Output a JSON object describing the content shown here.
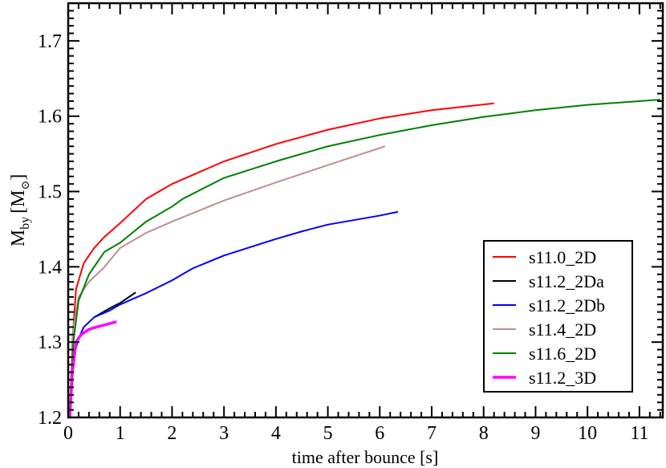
{
  "chart_data": {
    "type": "line",
    "xlabel": "time after bounce [s]",
    "ylabel_main": "M",
    "ylabel_sub": "by",
    "ylabel_unit": "[M",
    "ylabel_unit_sub": "⊙",
    "ylabel_close": "]",
    "xlim": [
      0,
      11.45
    ],
    "ylim": [
      1.2,
      1.75
    ],
    "xticks": [
      0,
      1,
      2,
      3,
      4,
      5,
      6,
      7,
      8,
      9,
      10,
      11
    ],
    "yticks": [
      1.2,
      1.3,
      1.4,
      1.5,
      1.6,
      1.7
    ],
    "ytick_labels": [
      "1.2",
      "1.3",
      "1.4",
      "1.5",
      "1.6",
      "1.7"
    ],
    "grid": false,
    "legend_position": "bottom-right",
    "series": [
      {
        "name": "s11.0_2D",
        "color": "#ff0000",
        "width": 2,
        "points": [
          [
            0.03,
            1.2
          ],
          [
            0.08,
            1.3
          ],
          [
            0.15,
            1.37
          ],
          [
            0.3,
            1.405
          ],
          [
            0.5,
            1.425
          ],
          [
            0.7,
            1.44
          ],
          [
            1,
            1.458
          ],
          [
            1.5,
            1.49
          ],
          [
            2,
            1.51
          ],
          [
            3,
            1.54
          ],
          [
            4,
            1.563
          ],
          [
            5,
            1.582
          ],
          [
            6,
            1.597
          ],
          [
            7,
            1.608
          ],
          [
            8.2,
            1.617
          ]
        ]
      },
      {
        "name": "s11.2_2Da",
        "color": "#000000",
        "width": 2,
        "points": [
          [
            0.5,
            1.333
          ],
          [
            0.8,
            1.345
          ],
          [
            1,
            1.352
          ],
          [
            1.3,
            1.366
          ]
        ]
      },
      {
        "name": "s11.2_2Db",
        "color": "#0000ff",
        "width": 2,
        "points": [
          [
            0.05,
            1.22
          ],
          [
            0.1,
            1.28
          ],
          [
            0.2,
            1.305
          ],
          [
            0.3,
            1.32
          ],
          [
            0.5,
            1.333
          ],
          [
            0.8,
            1.342
          ],
          [
            1,
            1.35
          ],
          [
            1.5,
            1.365
          ],
          [
            2,
            1.382
          ],
          [
            2.4,
            1.398
          ],
          [
            3,
            1.415
          ],
          [
            4,
            1.437
          ],
          [
            4.5,
            1.447
          ],
          [
            5,
            1.456
          ],
          [
            5.5,
            1.462
          ],
          [
            6,
            1.468
          ],
          [
            6.35,
            1.473
          ]
        ]
      },
      {
        "name": "s11.4_2D",
        "color": "#bc8f8f",
        "width": 2,
        "points": [
          [
            0.05,
            1.25
          ],
          [
            0.1,
            1.32
          ],
          [
            0.2,
            1.36
          ],
          [
            0.4,
            1.38
          ],
          [
            0.7,
            1.4
          ],
          [
            1,
            1.425
          ],
          [
            1.5,
            1.445
          ],
          [
            2,
            1.46
          ],
          [
            3,
            1.488
          ],
          [
            4,
            1.512
          ],
          [
            5,
            1.535
          ],
          [
            6.1,
            1.56
          ]
        ]
      },
      {
        "name": "s11.6_2D",
        "color": "#008000",
        "width": 2,
        "points": [
          [
            0.03,
            1.2
          ],
          [
            0.1,
            1.3
          ],
          [
            0.2,
            1.355
          ],
          [
            0.4,
            1.39
          ],
          [
            0.7,
            1.42
          ],
          [
            1,
            1.432
          ],
          [
            1.5,
            1.46
          ],
          [
            2,
            1.48
          ],
          [
            2.2,
            1.49
          ],
          [
            3,
            1.518
          ],
          [
            4,
            1.54
          ],
          [
            5,
            1.56
          ],
          [
            6,
            1.575
          ],
          [
            7,
            1.588
          ],
          [
            8,
            1.599
          ],
          [
            9,
            1.608
          ],
          [
            10,
            1.615
          ],
          [
            11.4,
            1.622
          ]
        ]
      },
      {
        "name": "s11.2_3D",
        "color": "#ff00ff",
        "width": 3.5,
        "points": [
          [
            0.03,
            1.2
          ],
          [
            0.08,
            1.26
          ],
          [
            0.15,
            1.3
          ],
          [
            0.25,
            1.31
          ],
          [
            0.4,
            1.317
          ],
          [
            0.6,
            1.321
          ],
          [
            0.93,
            1.327
          ]
        ]
      }
    ]
  }
}
